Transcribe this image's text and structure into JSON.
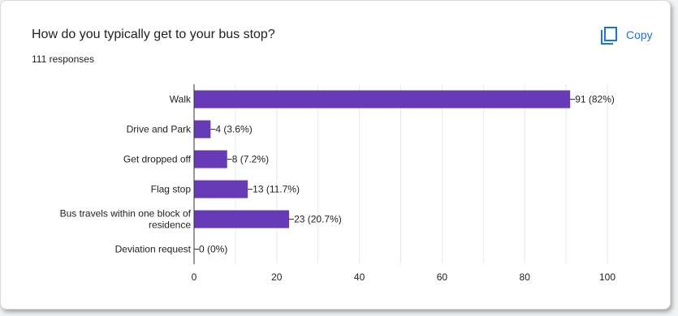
{
  "card": {
    "title": "How do you typically get to your bus stop?",
    "subtitle": "111 responses",
    "copy_label": "Copy"
  },
  "colors": {
    "bar": "#673ab7",
    "accent": "#1a73e8",
    "grid": "#e8eaed",
    "axis": "#333333",
    "text": "#222222"
  },
  "chart_data": {
    "type": "bar",
    "orientation": "horizontal",
    "categories": [
      [
        "Walk"
      ],
      [
        "Drive and Park"
      ],
      [
        "Get dropped off"
      ],
      [
        "Flag stop"
      ],
      [
        "Bus travels within one block of",
        "residence"
      ],
      [
        "Deviation request"
      ]
    ],
    "values": [
      91,
      4,
      8,
      13,
      23,
      0
    ],
    "data_labels": [
      "91 (82%)",
      "4 (3.6%)",
      "8 (7.2%)",
      "13 (11.7%)",
      "23 (20.7%)",
      "0 (0%)"
    ],
    "xlim": [
      0,
      100
    ],
    "xticks": [
      0,
      20,
      40,
      60,
      80,
      100
    ],
    "grid": true,
    "title": "",
    "xlabel": "",
    "ylabel": ""
  }
}
